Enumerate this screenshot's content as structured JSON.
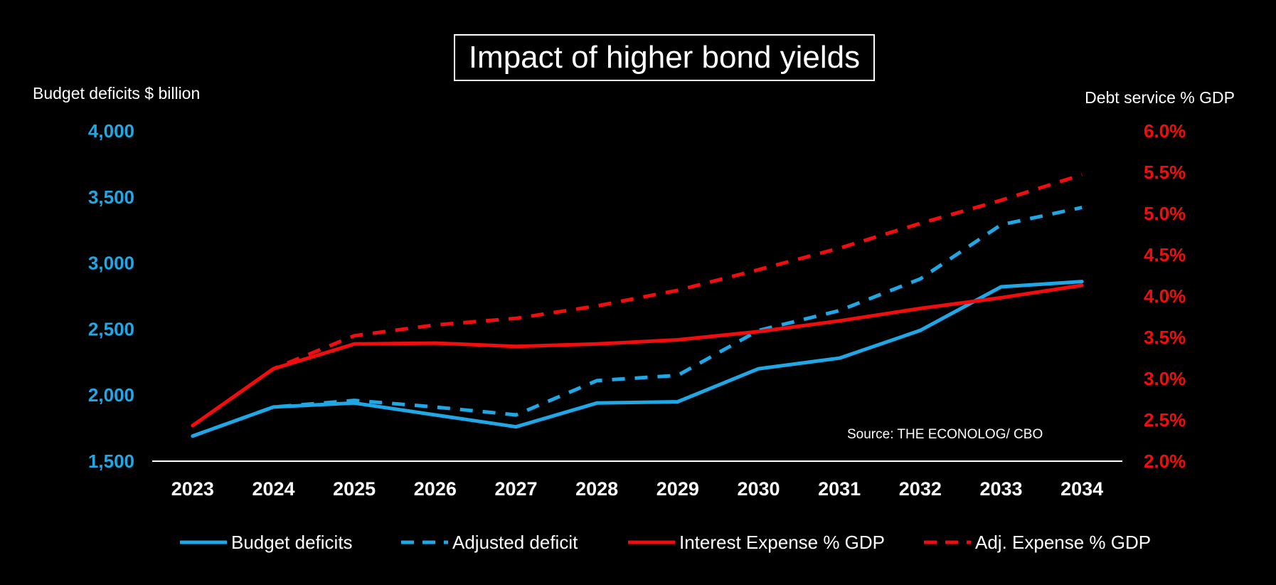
{
  "title": "Impact of higher bond yields",
  "left_axis_label": "Budget deficits $ billion",
  "right_axis_label": "Debt service % GDP",
  "source": "Source: THE ECONOLOG/ CBO",
  "colors": {
    "blue": "#1fa7e6",
    "red": "#f00d0d",
    "background": "#000000",
    "axis": "#ffffff"
  },
  "chart_data": {
    "type": "line",
    "title": "Impact of higher bond yields",
    "x": [
      "2023",
      "2024",
      "2025",
      "2026",
      "2027",
      "2028",
      "2029",
      "2030",
      "2031",
      "2032",
      "2033",
      "2034"
    ],
    "y_left": {
      "label": "Budget deficits $ billion",
      "range": [
        1500,
        4000
      ],
      "ticks": [
        1500,
        2000,
        2500,
        3000,
        3500,
        4000
      ],
      "tick_labels": [
        "1,500",
        "2,000",
        "2,500",
        "3,000",
        "3,500",
        "4,000"
      ]
    },
    "y_right": {
      "label": "Debt service % GDP",
      "range": [
        2.0,
        6.0
      ],
      "ticks": [
        2.0,
        2.5,
        3.0,
        3.5,
        4.0,
        4.5,
        5.0,
        5.5,
        6.0
      ],
      "tick_labels": [
        "2.0%",
        "2.5%",
        "3.0%",
        "3.5%",
        "4.0%",
        "4.5%",
        "5.0%",
        "5.5%",
        "6.0%"
      ]
    },
    "series": [
      {
        "name": "Budget deficits",
        "axis": "left",
        "style": "solid",
        "color": "#1fa7e6",
        "values": [
          1690,
          1910,
          1940,
          1850,
          1760,
          1940,
          1950,
          2200,
          2280,
          2490,
          2820,
          2860
        ]
      },
      {
        "name": "Adjusted deficit",
        "axis": "left",
        "style": "dashed",
        "color": "#1fa7e6",
        "values": [
          1690,
          1910,
          1960,
          1910,
          1850,
          2110,
          2150,
          2490,
          2640,
          2880,
          3290,
          3420
        ]
      },
      {
        "name": "Interest Expense % GDP",
        "axis": "right",
        "style": "solid",
        "color": "#f00d0d",
        "values": [
          2.43,
          3.12,
          3.42,
          3.43,
          3.39,
          3.42,
          3.47,
          3.57,
          3.7,
          3.85,
          3.98,
          4.13
        ]
      },
      {
        "name": "Adj. Expense % GDP",
        "axis": "right",
        "style": "dashed",
        "color": "#f00d0d",
        "values": [
          2.43,
          3.12,
          3.52,
          3.65,
          3.73,
          3.88,
          4.07,
          4.32,
          4.58,
          4.88,
          5.16,
          5.47
        ]
      }
    ],
    "grid": false,
    "legend_position": "bottom"
  }
}
